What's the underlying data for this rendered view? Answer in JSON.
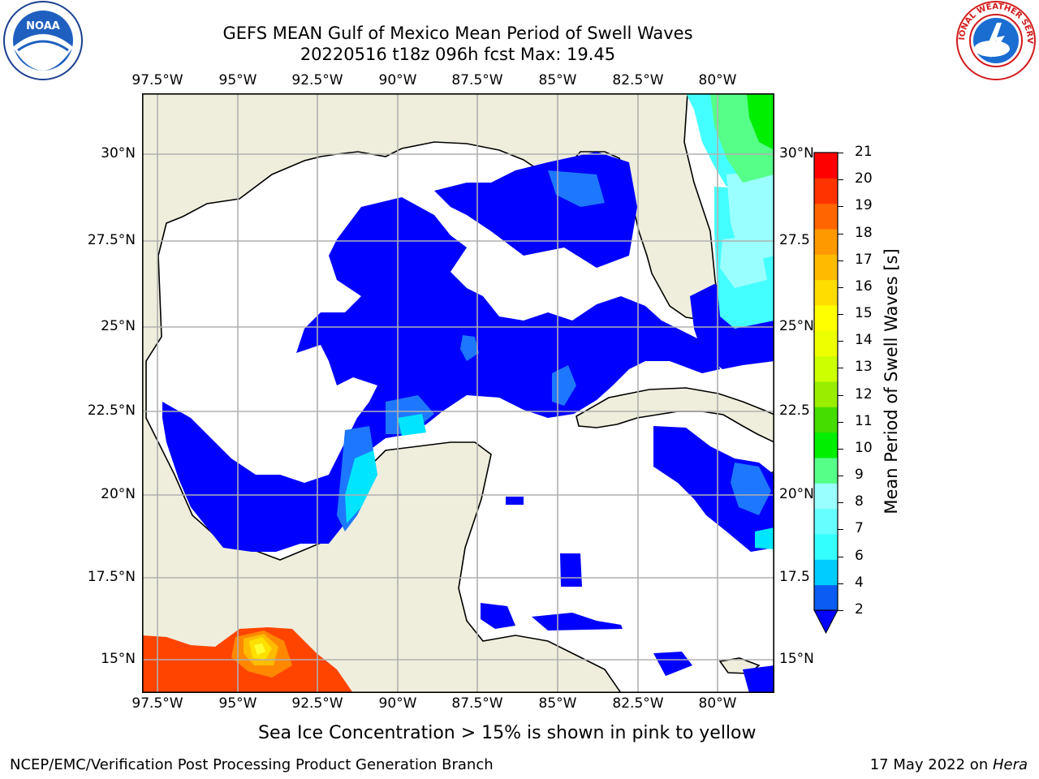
{
  "header": {
    "title_line1": "GEFS MEAN Gulf of Mexico Mean Period of Swell Waves",
    "title_line2": "20220516 t18z 096h fcst   Max: 19.45"
  },
  "logos": {
    "left": {
      "name": "noaa-logo",
      "text": "NOAA",
      "ring_text": "NATIONAL OCEANIC AND ATMOSPHERIC ADMINISTRATION"
    },
    "right": {
      "name": "nws-logo",
      "ring_text": "NATIONAL WEATHER SERVICE"
    }
  },
  "map": {
    "lon_labels": [
      "97.5°W",
      "95°W",
      "92.5°W",
      "90°W",
      "87.5°W",
      "85°W",
      "82.5°W",
      "80°W"
    ],
    "lat_labels_left": [
      "30°N",
      "27.5°N",
      "25°N",
      "22.5°N",
      "20°N",
      "17.5°N",
      "15°N"
    ],
    "lat_labels_right": [
      "30°N",
      "27.5",
      "25°N",
      "22.5",
      "20°N",
      "17.5",
      "15°N"
    ],
    "colors": {
      "land": "#efeedc",
      "ocean": "#ffffff",
      "grid": "#b0b0b0"
    }
  },
  "colorbar": {
    "label": "Mean Period of Swell Waves [s]",
    "ticks": [
      "2",
      "4",
      "6",
      "7",
      "8",
      "9",
      "10",
      "11",
      "12",
      "13",
      "14",
      "15",
      "16",
      "17",
      "18",
      "19",
      "20",
      "21"
    ],
    "colors": [
      "#0a5cf2",
      "#00ccff",
      "#33ffff",
      "#66ffff",
      "#99ffff",
      "#55ff88",
      "#00ee00",
      "#44dd00",
      "#99ee00",
      "#ccff00",
      "#eeff00",
      "#ffff00",
      "#ffdd00",
      "#ffbb00",
      "#ff9900",
      "#ff6600",
      "#ff3300",
      "#ff0000"
    ],
    "extend_color": "#0000ff"
  },
  "note": "Sea Ice Concentration > 15% is shown in pink to yellow",
  "footer": {
    "left": "NCEP/EMC/Verification Post Processing Product Generation Branch",
    "date": "17 May 2022 on ",
    "machine": "Hera"
  }
}
